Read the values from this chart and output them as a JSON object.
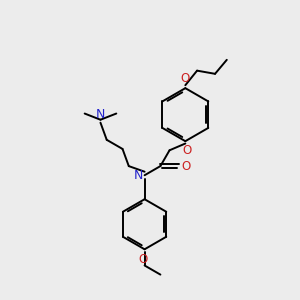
{
  "background_color": "#ececec",
  "bond_color": "#000000",
  "nitrogen_color": "#2222cc",
  "oxygen_color": "#cc2222",
  "line_width": 1.4,
  "figsize": [
    3.0,
    3.0
  ],
  "dpi": 100,
  "xlim": [
    0,
    10
  ],
  "ylim": [
    0,
    10
  ]
}
